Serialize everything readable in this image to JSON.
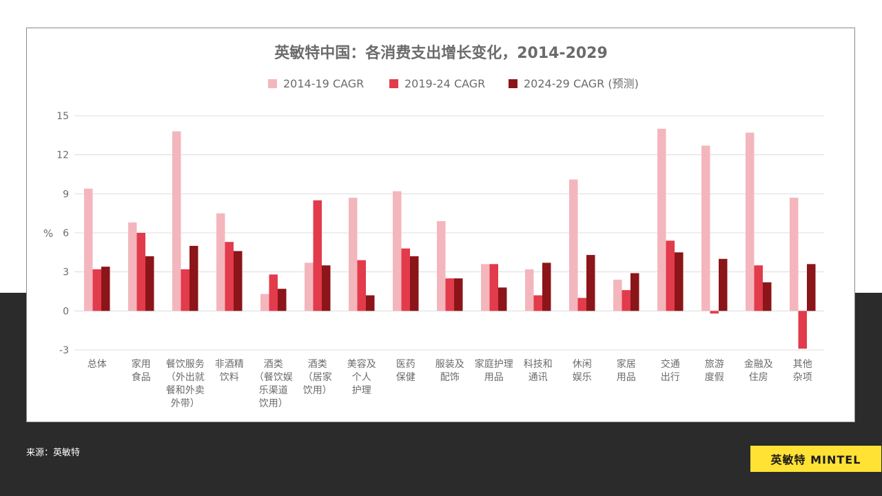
{
  "source": "来源：英敏特",
  "brand": "英敏特 MINTEL",
  "colors": {
    "s1": "#f4b6bd",
    "s2": "#e23b4b",
    "s3": "#8b1519"
  },
  "chart_data": {
    "type": "bar",
    "title": "英敏特中国：各消费支出增长变化，2014-2029",
    "ylabel": "%",
    "ylim": [
      -3,
      15
    ],
    "yticks": [
      "15",
      "12",
      "9",
      "6",
      "3",
      "0",
      "-3"
    ],
    "grid": true,
    "legend_position": "top",
    "categories": [
      [
        "总体"
      ],
      [
        "家用",
        "食品"
      ],
      [
        "餐饮服务",
        "（外出就",
        "餐和外卖",
        "外带）"
      ],
      [
        "非酒精",
        "饮料"
      ],
      [
        "酒类",
        "（餐饮娱",
        "乐渠道",
        "饮用）"
      ],
      [
        "酒类",
        "（居家",
        "饮用）"
      ],
      [
        "美容及",
        "个人",
        "护理"
      ],
      [
        "医药",
        "保健"
      ],
      [
        "服装及",
        "配饰"
      ],
      [
        "家庭护理",
        "用品"
      ],
      [
        "科技和",
        "通讯"
      ],
      [
        "休闲",
        "娱乐"
      ],
      [
        "家居",
        "用品"
      ],
      [
        "交通",
        "出行"
      ],
      [
        "旅游",
        "度假"
      ],
      [
        "金融及",
        "住房"
      ],
      [
        "其他",
        "杂项"
      ]
    ],
    "series": [
      {
        "name": "2014-19 CAGR",
        "color": "#f4b6bd",
        "values": [
          9.4,
          6.8,
          13.8,
          7.5,
          1.3,
          3.7,
          8.7,
          9.2,
          6.9,
          3.6,
          3.2,
          10.1,
          2.4,
          14.0,
          12.7,
          13.7,
          8.7
        ]
      },
      {
        "name": "2019-24 CAGR",
        "color": "#e23b4b",
        "values": [
          3.2,
          6.0,
          3.2,
          5.3,
          2.8,
          8.5,
          3.9,
          4.8,
          2.5,
          3.6,
          1.2,
          1.0,
          1.6,
          5.4,
          -0.2,
          3.5,
          -2.9
        ]
      },
      {
        "name": "2024-29 CAGR (预测)",
        "color": "#8b1519",
        "values": [
          3.4,
          4.2,
          5.0,
          4.6,
          1.7,
          3.5,
          1.2,
          4.2,
          2.5,
          1.8,
          3.7,
          4.3,
          2.9,
          4.5,
          4.0,
          2.2,
          3.6
        ]
      }
    ]
  }
}
